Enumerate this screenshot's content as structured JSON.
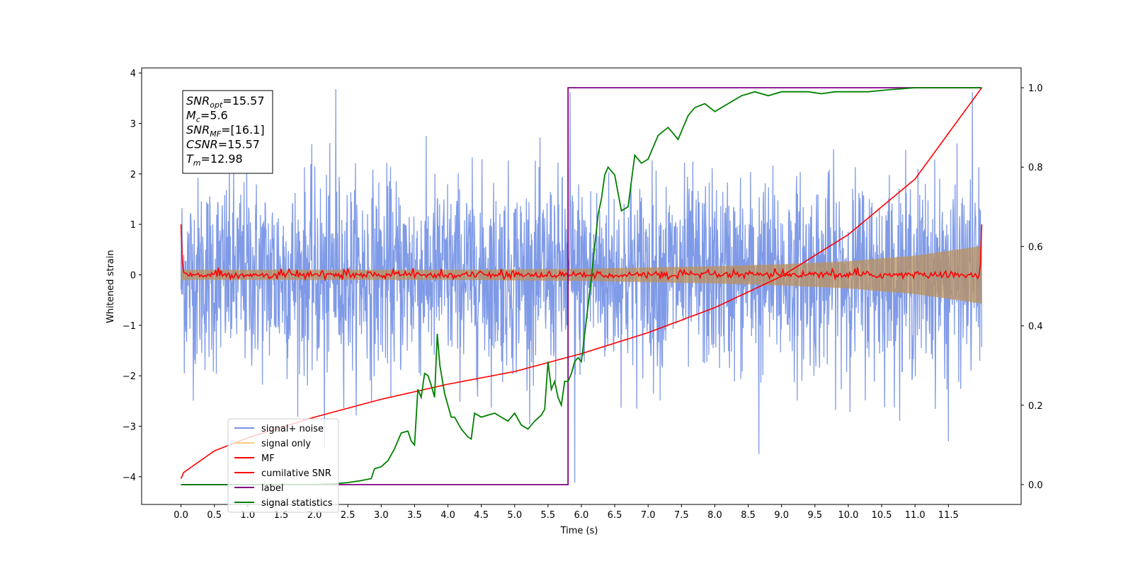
{
  "chart_data": {
    "type": "line",
    "title": "",
    "xlabel": "Time (s)",
    "ylabel_left": "Whitened strain",
    "ylabel_right": "",
    "xlim": [
      -0.59,
      12.59
    ],
    "ylim_left": [
      -4.55,
      4.1
    ],
    "ylim_right": [
      -0.05,
      1.05
    ],
    "x_ticks": [
      "0.0",
      "0.5",
      "1.0",
      "1.5",
      "2.0",
      "2.5",
      "3.0",
      "3.5",
      "4.0",
      "4.5",
      "5.0",
      "5.5",
      "6.0",
      "6.5",
      "7.0",
      "7.5",
      "8.0",
      "8.5",
      "9.0",
      "9.5",
      "10.0",
      "10.5",
      "11.0",
      "11.5"
    ],
    "y_ticks_left": [
      "4",
      "3",
      "2",
      "1",
      "0",
      "−1",
      "−2",
      "−3",
      "−4"
    ],
    "y_ticks_right": [
      "1.0",
      "0.8",
      "0.6",
      "0.4",
      "0.2",
      "0.0"
    ],
    "grid": false,
    "legend": {
      "placement": "lower-left",
      "entries": [
        {
          "label": "signal+ noise",
          "color": "#7895e6"
        },
        {
          "label": "signal only",
          "color": "#ffcc80"
        },
        {
          "label": "MF",
          "color": "#ff0000"
        },
        {
          "label": "cumilative SNR",
          "color": "#ff0000"
        },
        {
          "label": "label",
          "color": "#800080"
        },
        {
          "label": "signal statistics",
          "color": "#008000"
        }
      ]
    },
    "annotation": {
      "lines": [
        {
          "sym": "SNR",
          "sub": "opt",
          "value": "=15.57"
        },
        {
          "sym": "M",
          "sub": "c",
          "value": "=5.6"
        },
        {
          "sym": "SNR",
          "sub": "MF",
          "value": "=[16.1]"
        },
        {
          "sym": "CSNR",
          "sub": "",
          "value": "=15.57"
        },
        {
          "sym": "T",
          "sub": "m",
          "value": "=12.98"
        }
      ]
    },
    "series": [
      {
        "name": "signal+ noise",
        "axis": "left",
        "color": "#7895e6",
        "x_range": [
          0,
          12.0
        ],
        "description_of_shape": "dense gaussian noise, amplitude about ±2.5 with spikes to about ±3.7",
        "peaks": [
          [
            2.32,
            3.68
          ],
          [
            5.83,
            3.62
          ],
          [
            11.86,
            3.62
          ],
          [
            2.15,
            -3.45
          ],
          [
            5.9,
            -4.12
          ],
          [
            8.66,
            -3.55
          ],
          [
            11.5,
            -3.3
          ]
        ]
      },
      {
        "name": "signal only",
        "axis": "left",
        "color": "#ffcc80",
        "envelope": [
          [
            0,
            0.1
          ],
          [
            2,
            0.1
          ],
          [
            4,
            0.1
          ],
          [
            6,
            0.12
          ],
          [
            8,
            0.17
          ],
          [
            9,
            0.21
          ],
          [
            10,
            0.27
          ],
          [
            11,
            0.38
          ],
          [
            12,
            0.57
          ]
        ]
      },
      {
        "name": "MF",
        "axis": "left",
        "color": "#ff0000",
        "description_of_shape": "near zero everywhere with small fluctuations, about 1.0 at both ends",
        "endpoints": [
          [
            0,
            1.0
          ],
          [
            0.03,
            0.1
          ],
          [
            11.95,
            0.05
          ],
          [
            12.0,
            1.0
          ]
        ]
      },
      {
        "name": "cumilative SNR",
        "axis": "right",
        "color": "#ff0000",
        "points": [
          [
            0,
            0.015
          ],
          [
            0.01,
            0.027
          ],
          [
            0.5,
            0.085
          ],
          [
            1,
            0.118
          ],
          [
            2,
            0.17
          ],
          [
            3,
            0.215
          ],
          [
            4,
            0.253
          ],
          [
            5,
            0.285
          ],
          [
            6,
            0.33
          ],
          [
            7,
            0.383
          ],
          [
            8,
            0.446
          ],
          [
            9,
            0.525
          ],
          [
            10,
            0.63
          ],
          [
            11,
            0.77
          ],
          [
            12,
            1.0
          ]
        ]
      },
      {
        "name": "label",
        "axis": "right",
        "color": "#800080",
        "points": [
          [
            0,
            0.0
          ],
          [
            5.8,
            0.0
          ],
          [
            5.8,
            1.0
          ],
          [
            12.0,
            1.0
          ]
        ]
      },
      {
        "name": "signal statistics",
        "axis": "right",
        "color": "#008000",
        "points": [
          [
            0,
            0.0
          ],
          [
            0.5,
            0.0
          ],
          [
            1,
            0.0
          ],
          [
            1.5,
            0.0
          ],
          [
            2.0,
            0.0
          ],
          [
            2.3,
            0.002
          ],
          [
            2.5,
            0.005
          ],
          [
            2.7,
            0.01
          ],
          [
            2.85,
            0.015
          ],
          [
            2.9,
            0.04
          ],
          [
            3.0,
            0.045
          ],
          [
            3.1,
            0.06
          ],
          [
            3.2,
            0.09
          ],
          [
            3.3,
            0.13
          ],
          [
            3.4,
            0.135
          ],
          [
            3.45,
            0.11
          ],
          [
            3.5,
            0.1
          ],
          [
            3.55,
            0.24
          ],
          [
            3.6,
            0.22
          ],
          [
            3.65,
            0.28
          ],
          [
            3.7,
            0.275
          ],
          [
            3.75,
            0.25
          ],
          [
            3.8,
            0.22
          ],
          [
            3.84,
            0.38
          ],
          [
            3.88,
            0.3
          ],
          [
            3.95,
            0.23
          ],
          [
            4.0,
            0.2
          ],
          [
            4.05,
            0.17
          ],
          [
            4.1,
            0.17
          ],
          [
            4.2,
            0.14
          ],
          [
            4.3,
            0.12
          ],
          [
            4.35,
            0.115
          ],
          [
            4.4,
            0.18
          ],
          [
            4.5,
            0.17
          ],
          [
            4.6,
            0.175
          ],
          [
            4.7,
            0.18
          ],
          [
            4.8,
            0.17
          ],
          [
            4.9,
            0.16
          ],
          [
            5.0,
            0.18
          ],
          [
            5.1,
            0.15
          ],
          [
            5.2,
            0.14
          ],
          [
            5.3,
            0.16
          ],
          [
            5.4,
            0.175
          ],
          [
            5.45,
            0.19
          ],
          [
            5.5,
            0.31
          ],
          [
            5.55,
            0.24
          ],
          [
            5.6,
            0.26
          ],
          [
            5.65,
            0.22
          ],
          [
            5.7,
            0.2
          ],
          [
            5.75,
            0.26
          ],
          [
            5.8,
            0.26
          ],
          [
            5.85,
            0.28
          ],
          [
            5.9,
            0.31
          ],
          [
            5.95,
            0.32
          ],
          [
            6.0,
            0.31
          ],
          [
            6.05,
            0.38
          ],
          [
            6.1,
            0.45
          ],
          [
            6.15,
            0.52
          ],
          [
            6.2,
            0.6
          ],
          [
            6.25,
            0.68
          ],
          [
            6.3,
            0.72
          ],
          [
            6.35,
            0.78
          ],
          [
            6.4,
            0.8
          ],
          [
            6.5,
            0.78
          ],
          [
            6.6,
            0.69
          ],
          [
            6.7,
            0.7
          ],
          [
            6.8,
            0.83
          ],
          [
            6.9,
            0.81
          ],
          [
            7.0,
            0.82
          ],
          [
            7.15,
            0.88
          ],
          [
            7.3,
            0.9
          ],
          [
            7.45,
            0.87
          ],
          [
            7.6,
            0.93
          ],
          [
            7.7,
            0.95
          ],
          [
            7.85,
            0.96
          ],
          [
            8.0,
            0.94
          ],
          [
            8.2,
            0.96
          ],
          [
            8.4,
            0.98
          ],
          [
            8.6,
            0.99
          ],
          [
            8.8,
            0.98
          ],
          [
            9.0,
            0.99
          ],
          [
            9.2,
            0.99
          ],
          [
            9.4,
            0.99
          ],
          [
            9.6,
            0.985
          ],
          [
            9.8,
            0.99
          ],
          [
            10.0,
            0.99
          ],
          [
            10.3,
            0.99
          ],
          [
            10.6,
            0.995
          ],
          [
            11.0,
            1.0
          ],
          [
            11.5,
            1.0
          ],
          [
            12.0,
            1.0
          ]
        ]
      }
    ]
  }
}
